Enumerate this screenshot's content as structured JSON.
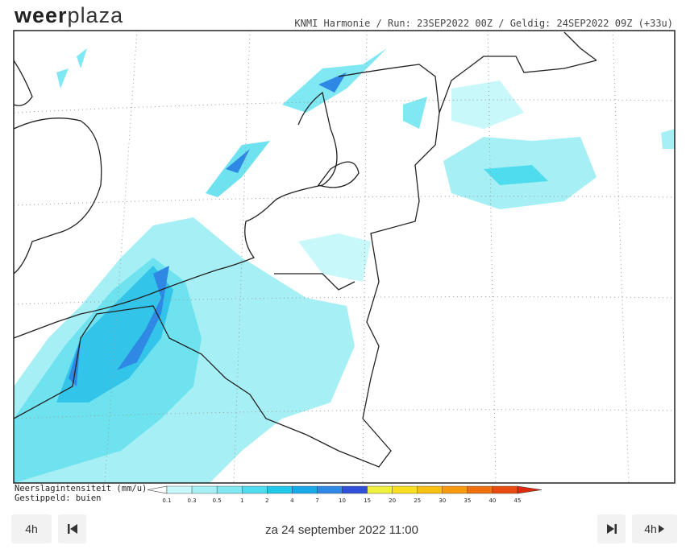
{
  "logo": {
    "part1": "weer",
    "part2": "plaza"
  },
  "header": {
    "run_info": "KNMI Harmonie / Run: 23SEP2022 00Z / Geldig: 24SEP2022 09Z (+33u)"
  },
  "legend": {
    "title": "Neerslagintensiteit (mm/u)",
    "subtitle": "Gestippeld: buien",
    "ticks": [
      0.1,
      0.3,
      0.5,
      1,
      2,
      4,
      7,
      10,
      15,
      20,
      25,
      30,
      35,
      40,
      45
    ],
    "colors": [
      "#ffffff",
      "#c8f8fa",
      "#a6f0f5",
      "#80e8f2",
      "#4fdcef",
      "#20c8ea",
      "#1aa8e8",
      "#2f88e4",
      "#3050d8",
      "#f0f040",
      "#f8e020",
      "#f8c010",
      "#f89a10",
      "#f07010",
      "#e84a10",
      "#e02a10"
    ]
  },
  "controls": {
    "back_step": "4h",
    "datetime": "za 24 september 2022 11:00",
    "forward_step": "4h"
  }
}
